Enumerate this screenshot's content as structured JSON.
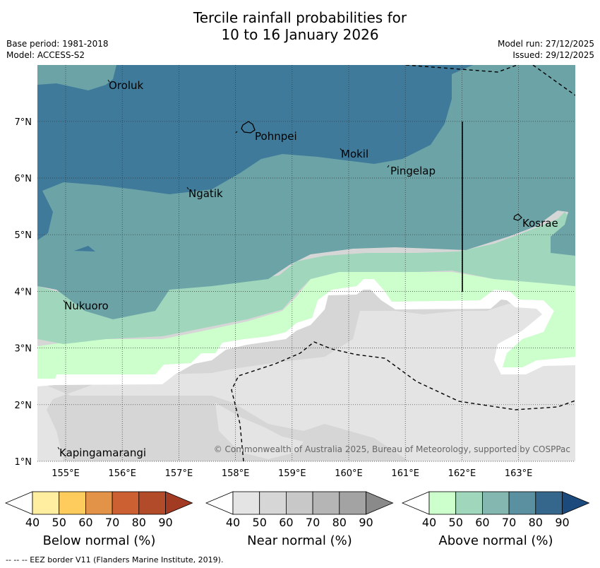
{
  "title": {
    "line1": "Tercile rainfall probabilities for",
    "line2": "10 to 16 January 2026"
  },
  "meta": {
    "base_period": "Base period: 1981-2018",
    "model": "Model: ACCESS-S2",
    "model_run": "Model run: 27/12/2025",
    "issued": "Issued: 29/12/2025"
  },
  "map": {
    "lon_ticks": [
      "155°E",
      "156°E",
      "157°E",
      "158°E",
      "159°E",
      "160°E",
      "161°E",
      "162°E",
      "163°E"
    ],
    "lat_ticks": [
      "1°N",
      "2°N",
      "3°N",
      "4°N",
      "5°N",
      "6°N",
      "7°N"
    ],
    "places": [
      {
        "name": "Oroluk"
      },
      {
        "name": "Pohnpei"
      },
      {
        "name": "Mokil"
      },
      {
        "name": "Pingelap"
      },
      {
        "name": "Ngatik"
      },
      {
        "name": "Kosrae"
      },
      {
        "name": "Nukuoro"
      },
      {
        "name": "Kapingamarangi"
      }
    ],
    "copyright": "© Commonwealth of Australia 2025, Bureau of Meteorology, supported by COSPPac"
  },
  "colorbars": [
    {
      "label": "Below normal (%)",
      "ticks": [
        "40",
        "50",
        "60",
        "70",
        "80",
        "90"
      ],
      "colors": [
        "#ffffff",
        "#ffeda0",
        "#fecc5c",
        "#e39347",
        "#cc6033",
        "#b24b29",
        "#a33a22"
      ]
    },
    {
      "label": "Near normal (%)",
      "ticks": [
        "40",
        "50",
        "60",
        "70",
        "80",
        "90"
      ],
      "colors": [
        "#ffffff",
        "#e4e4e4",
        "#d6d6d6",
        "#c8c8c8",
        "#b5b5b5",
        "#a3a3a3",
        "#8a8a8a"
      ]
    },
    {
      "label": "Above normal (%)",
      "ticks": [
        "40",
        "50",
        "60",
        "70",
        "80",
        "90"
      ],
      "colors": [
        "#ffffff",
        "#ccffcc",
        "#9fd6bc",
        "#83b7b0",
        "#5a909f",
        "#35668c",
        "#1c4a7d"
      ]
    }
  ],
  "footnote": "--  --  -- EEZ border V11 (Flanders Marine Institute, 2019)."
}
